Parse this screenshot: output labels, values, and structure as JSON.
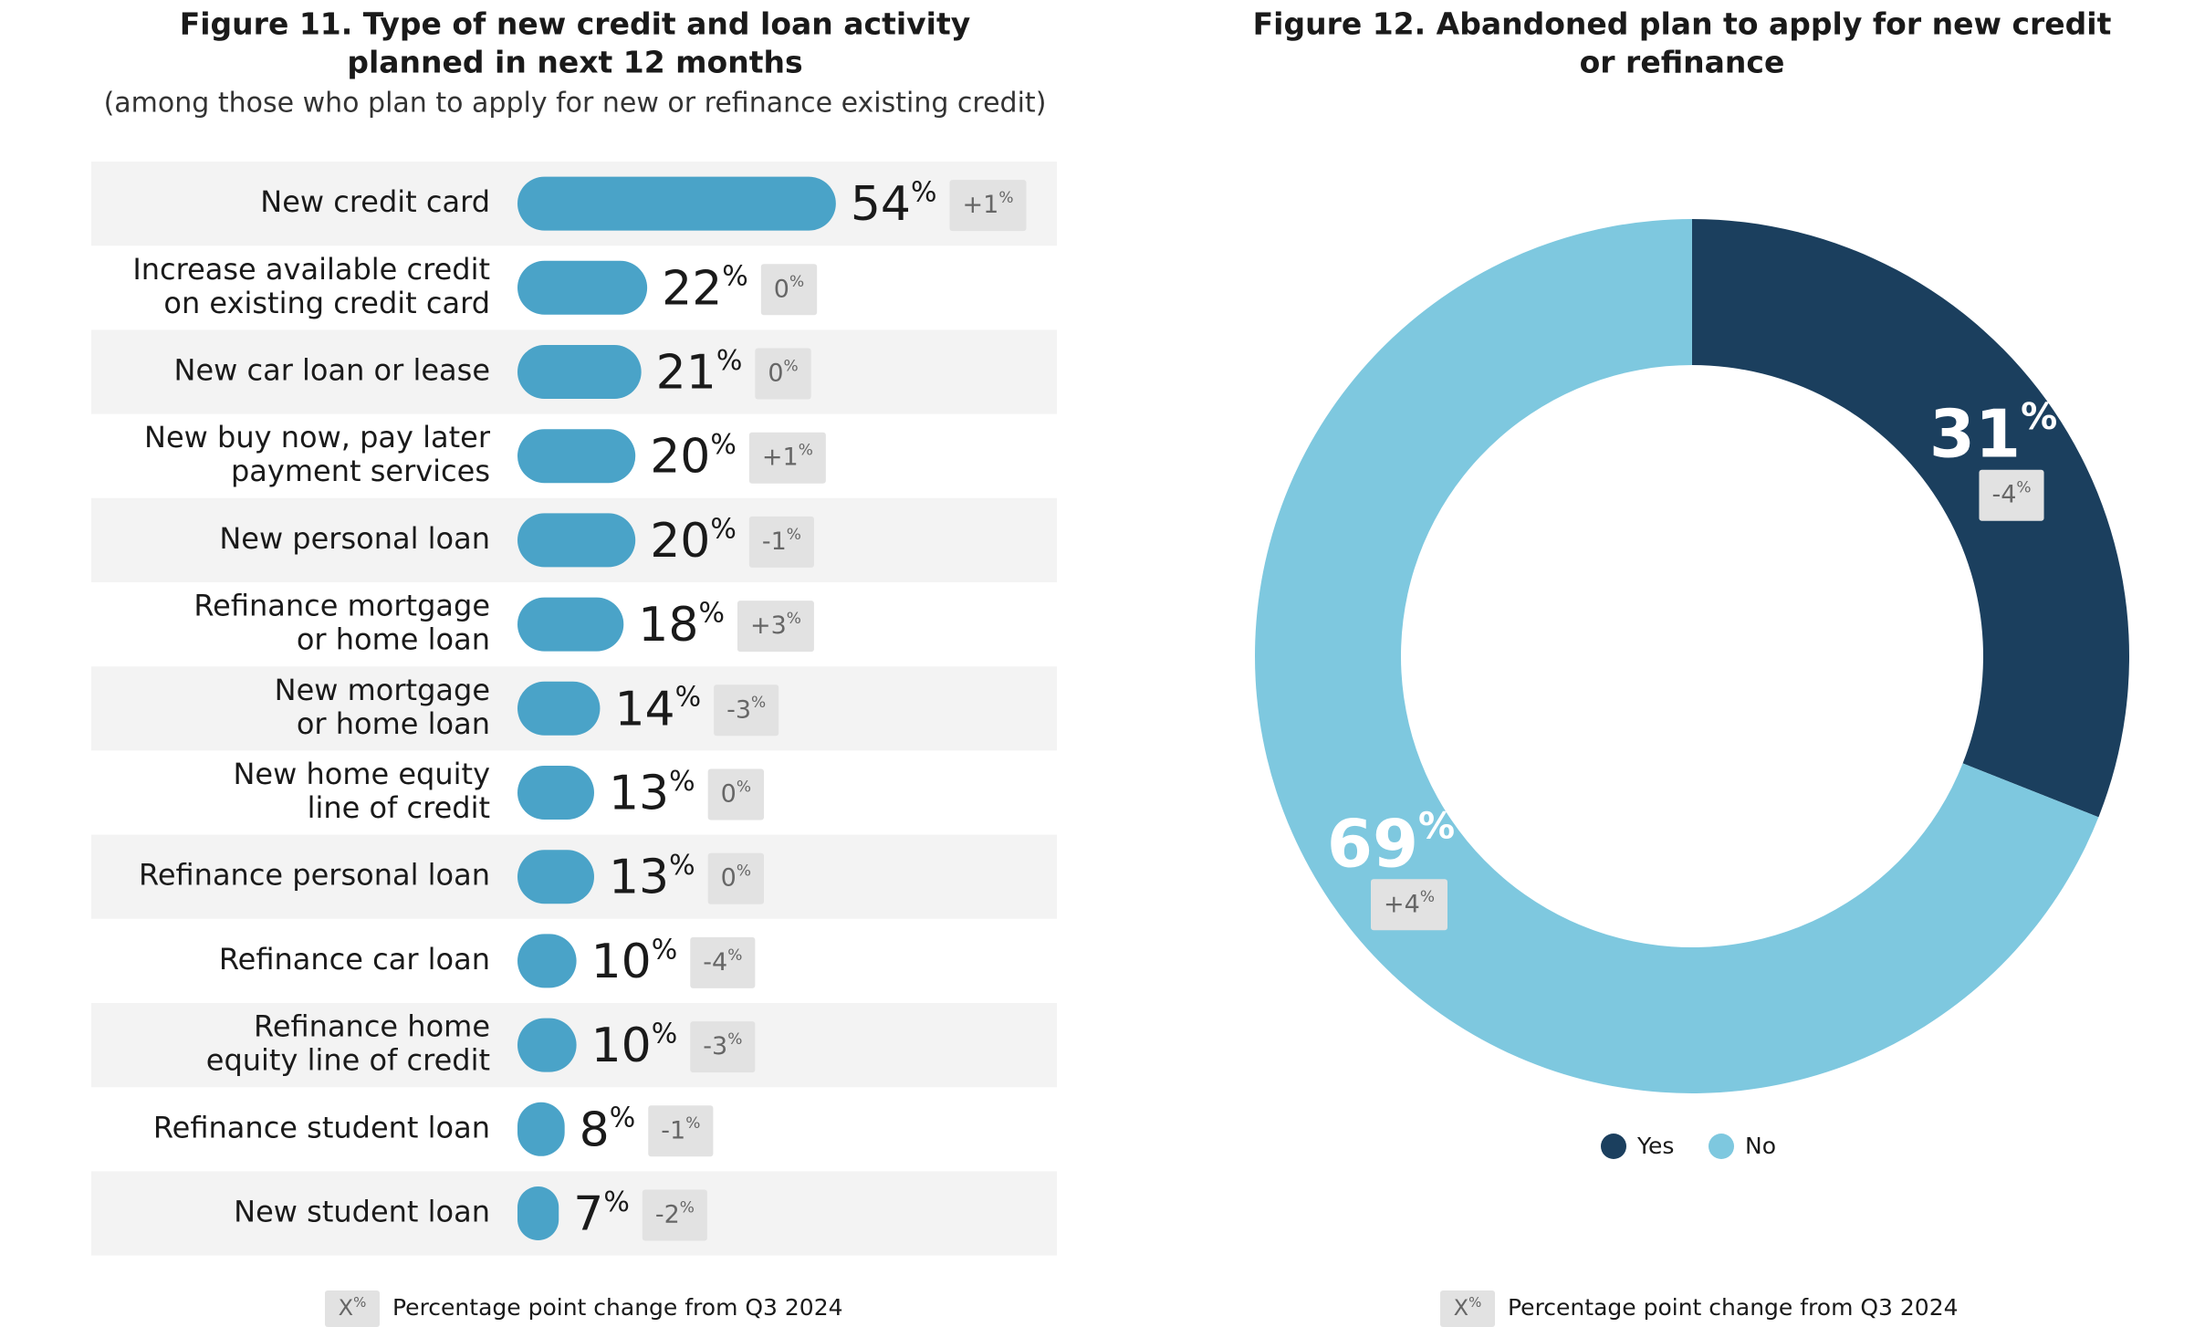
{
  "chart_data": [
    {
      "type": "bar",
      "title": [
        "Figure 11. Type of new credit and loan activity",
        "planned in next 12 months"
      ],
      "subtitle": "(among those who plan to apply for new or refinance existing credit)",
      "categories": [
        [
          "New credit card"
        ],
        [
          "Increase available credit",
          "on existing credit card"
        ],
        [
          "New car loan or lease"
        ],
        [
          "New buy now, pay later",
          "payment services"
        ],
        [
          "New personal loan"
        ],
        [
          "Refinance mortgage",
          "or home loan"
        ],
        [
          "New mortgage",
          "or home loan"
        ],
        [
          "New home equity",
          "line of credit"
        ],
        [
          "Refinance personal loan"
        ],
        [
          "Refinance car loan"
        ],
        [
          "Refinance home",
          "equity line of credit"
        ],
        [
          "Refinance student loan"
        ],
        [
          "New student loan"
        ]
      ],
      "values": [
        54,
        22,
        21,
        20,
        20,
        18,
        14,
        13,
        13,
        10,
        10,
        8,
        7
      ],
      "value_labels": [
        "54%",
        "22%",
        "21%",
        "20%",
        "20%",
        "18%",
        "14%",
        "13%",
        "13%",
        "10%",
        "10%",
        "8%",
        "7%"
      ],
      "changes": [
        1,
        0,
        0,
        1,
        -1,
        3,
        -3,
        0,
        0,
        -4,
        -3,
        -1,
        -2
      ],
      "change_labels": [
        "+1%",
        "0%",
        "0%",
        "+1%",
        "-1%",
        "+3%",
        "-3%",
        "0%",
        "0%",
        "-4%",
        "-3%",
        "-1%",
        "-2%"
      ],
      "color": "#4aa3c8",
      "note": {
        "symbol": "X%",
        "text": "Percentage point change from Q3 2024"
      }
    },
    {
      "type": "donut",
      "title": [
        "Figure 12. Abandoned plan to apply for new credit",
        "or refinance"
      ],
      "categories": [
        "Yes",
        "No"
      ],
      "values": [
        31,
        69
      ],
      "value_labels": [
        "31%",
        "69%"
      ],
      "changes": [
        -4,
        4
      ],
      "change_labels": [
        "-4%",
        "+4%"
      ],
      "colors": [
        "#1b3f5e",
        "#7ec8df"
      ],
      "note": {
        "symbol": "X%",
        "text": "Percentage point change from Q3 2024"
      }
    }
  ]
}
